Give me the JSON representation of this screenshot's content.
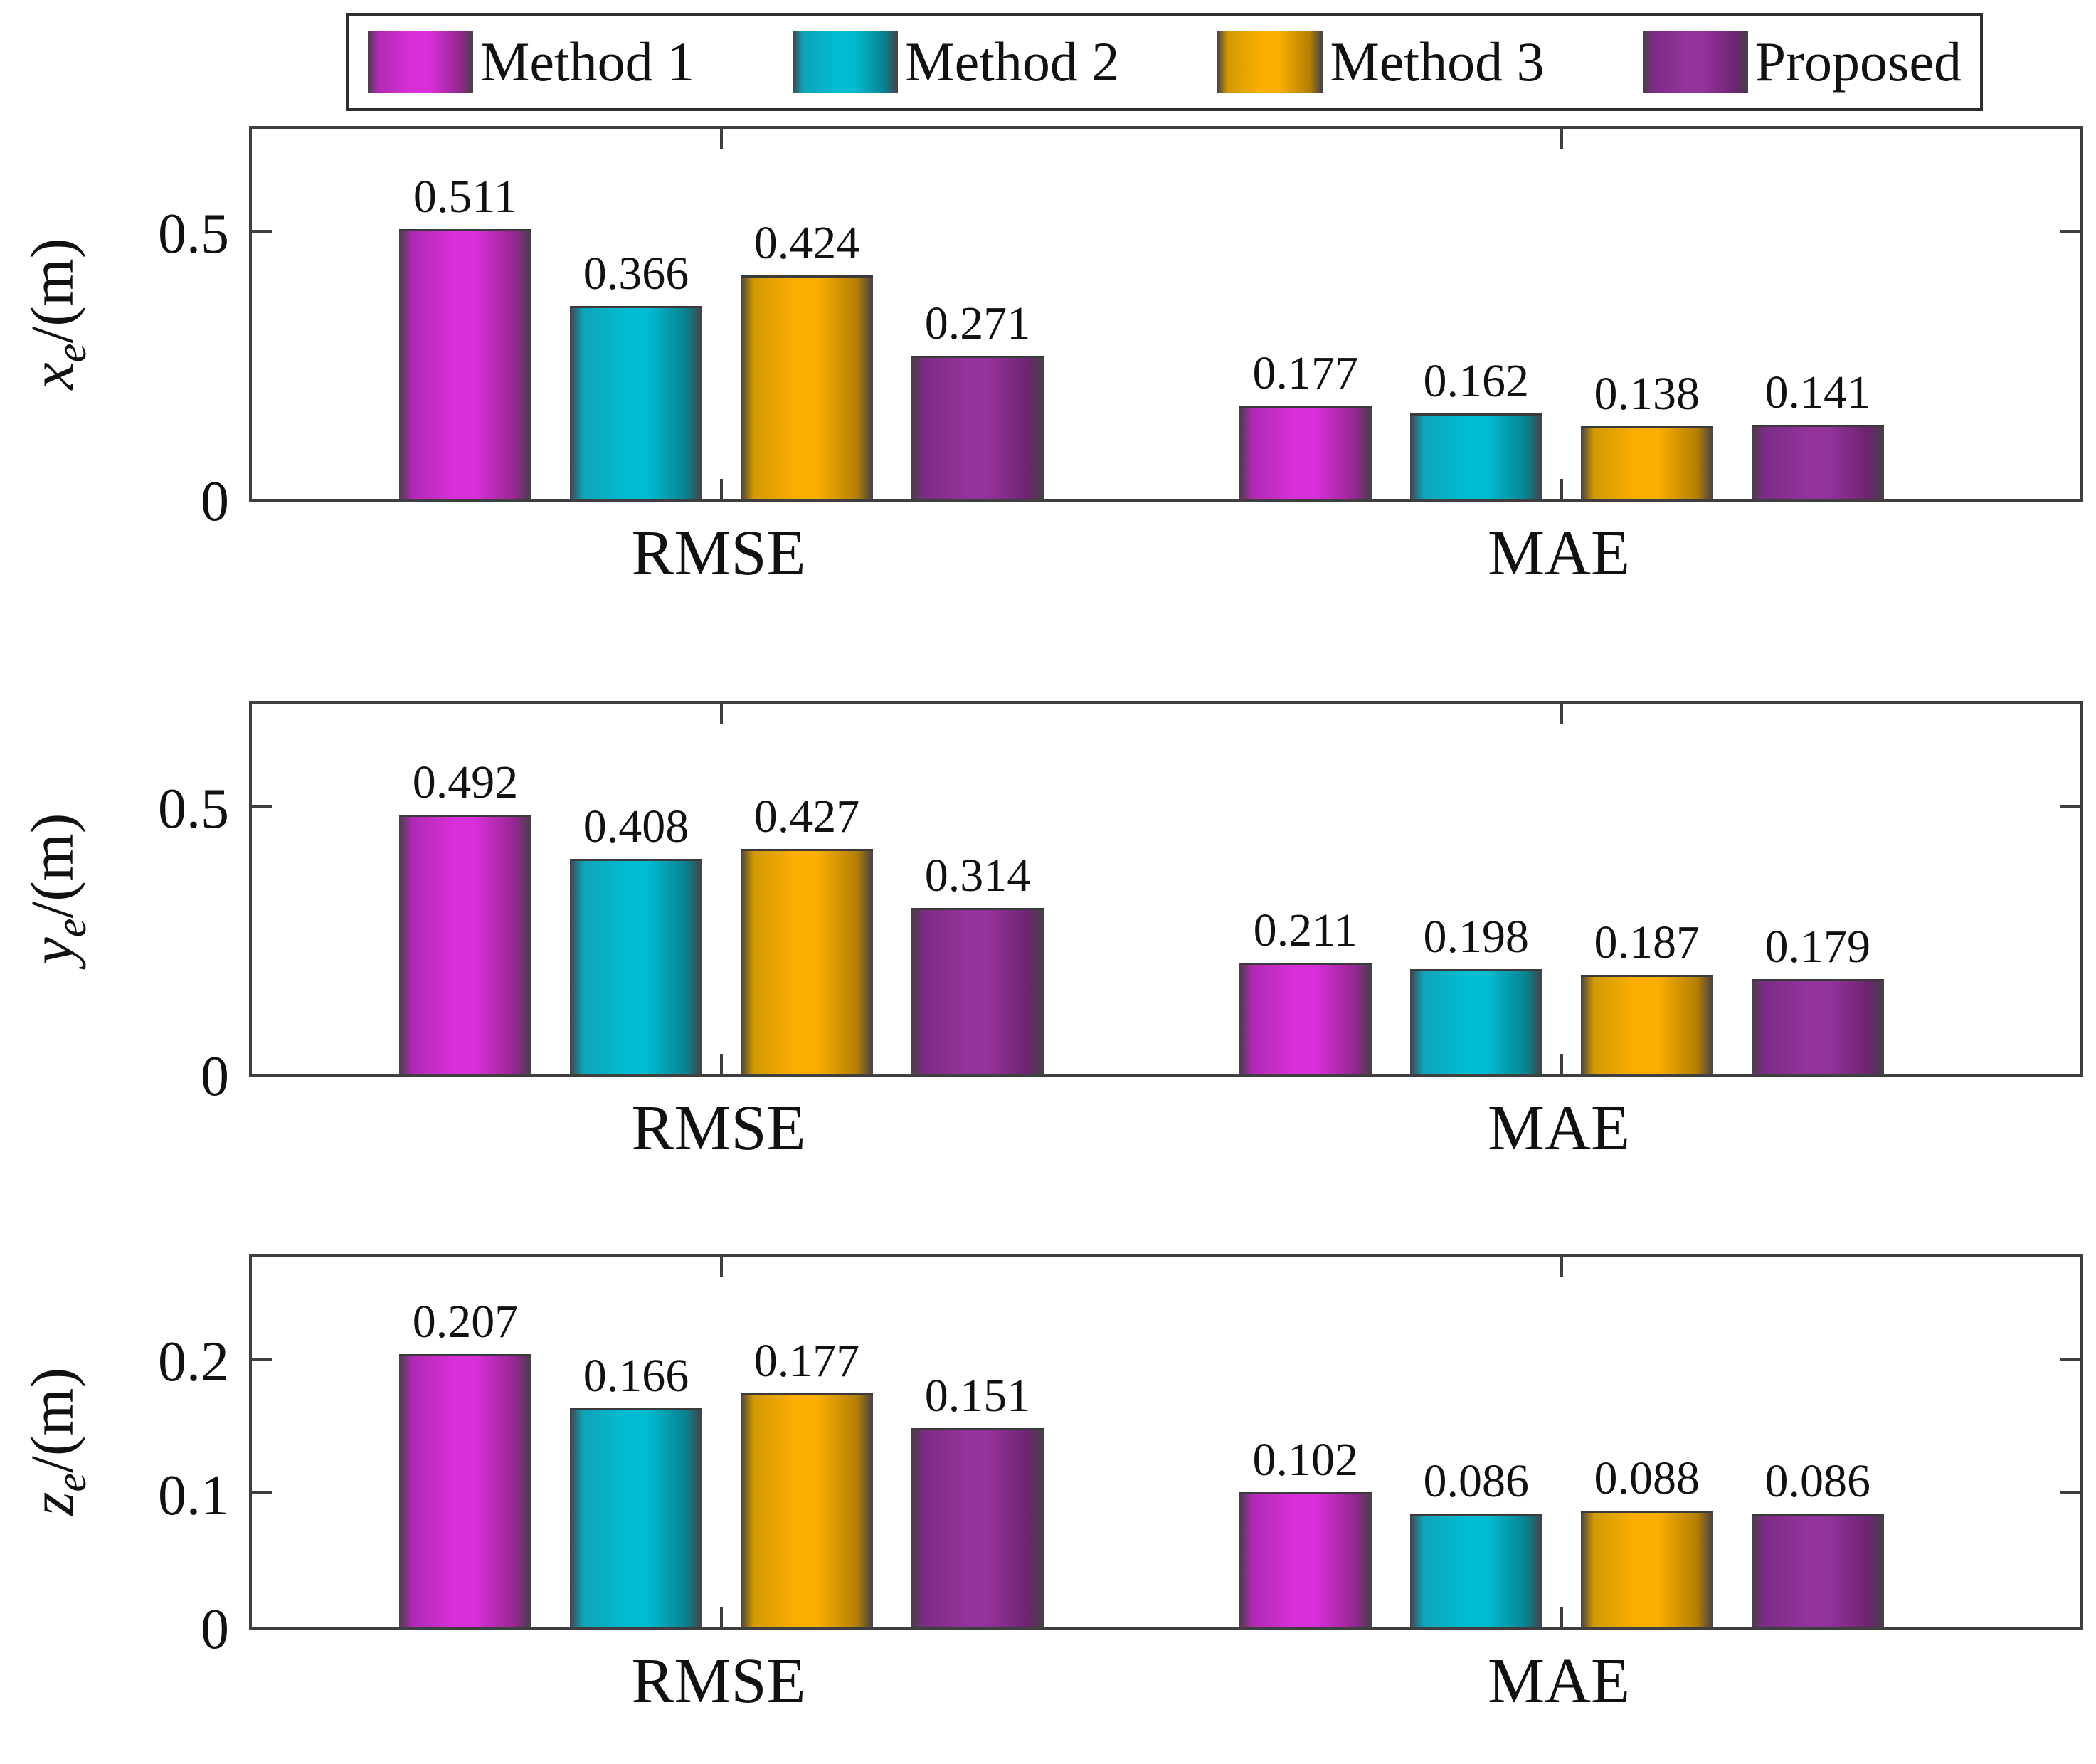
{
  "legend": {
    "items": [
      {
        "label": "Method 1",
        "color_light": "#d92fd9",
        "color_dark": "#93278f"
      },
      {
        "label": "Method 2",
        "color_light": "#00bcd2",
        "color_dark": "#07818f"
      },
      {
        "label": "Method 3",
        "color_light": "#fcae00",
        "color_dark": "#b37f02"
      },
      {
        "label": "Proposed",
        "color_light": "#94339c",
        "color_dark": "#6b2470"
      }
    ]
  },
  "chart_data": [
    {
      "type": "bar",
      "ylabel_base": "x",
      "ylabel_sub": "e",
      "ylabel_unit": "/(m)",
      "categories": [
        "RMSE",
        "MAE"
      ],
      "series": [
        {
          "name": "Method 1",
          "values": [
            0.511,
            0.177
          ]
        },
        {
          "name": "Method 2",
          "values": [
            0.366,
            0.162
          ]
        },
        {
          "name": "Method 3",
          "values": [
            0.424,
            0.138
          ]
        },
        {
          "name": "Proposed",
          "values": [
            0.271,
            0.141
          ]
        }
      ],
      "yticks": [
        0,
        0.5
      ],
      "ylim": [
        0,
        0.702
      ],
      "grid": false,
      "legend_position": "top"
    },
    {
      "type": "bar",
      "ylabel_base": "y",
      "ylabel_sub": "e",
      "ylabel_unit": "/(m)",
      "categories": [
        "RMSE",
        "MAE"
      ],
      "series": [
        {
          "name": "Method 1",
          "values": [
            0.492,
            0.211
          ]
        },
        {
          "name": "Method 2",
          "values": [
            0.408,
            0.198
          ]
        },
        {
          "name": "Method 3",
          "values": [
            0.427,
            0.187
          ]
        },
        {
          "name": "Proposed",
          "values": [
            0.314,
            0.179
          ]
        }
      ],
      "yticks": [
        0,
        0.5
      ],
      "ylim": [
        0,
        0.702
      ],
      "grid": false,
      "legend_position": "top"
    },
    {
      "type": "bar",
      "ylabel_base": "z",
      "ylabel_sub": "e",
      "ylabel_unit": "/(m)",
      "categories": [
        "RMSE",
        "MAE"
      ],
      "series": [
        {
          "name": "Method 1",
          "values": [
            0.207,
            0.102
          ]
        },
        {
          "name": "Method 2",
          "values": [
            0.166,
            0.086
          ]
        },
        {
          "name": "Method 3",
          "values": [
            0.177,
            0.088
          ]
        },
        {
          "name": "Proposed",
          "values": [
            0.151,
            0.086
          ]
        }
      ],
      "yticks": [
        0,
        0.1,
        0.2
      ],
      "ylim": [
        0,
        0.281
      ],
      "grid": false,
      "legend_position": "top"
    }
  ]
}
